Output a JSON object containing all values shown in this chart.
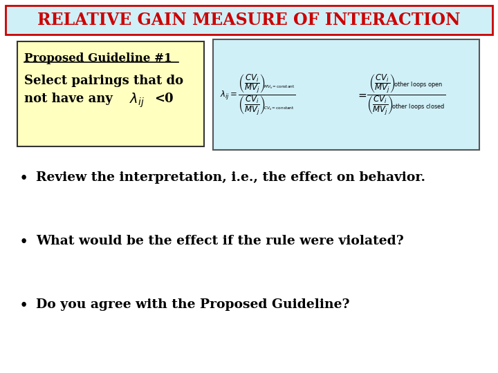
{
  "title": "RELATIVE GAIN MEASURE OF INTERACTION",
  "title_color": "#cc0000",
  "title_bg": "#d0f0f8",
  "title_border": "#cc0000",
  "bg_color": "#ffffff",
  "guideline_title": "Proposed Guideline #1",
  "guideline_text1": "Select pairings that do",
  "guideline_bg": "#ffffc0",
  "guideline_border": "#333333",
  "bullet1": "Review the interpretation, i.e., the effect on behavior.",
  "bullet2": "What would be the effect if the rule were violated?",
  "bullet3": "Do you agree with the Proposed Guideline?",
  "formula_bg": "#d0f0f8",
  "formula_border": "#555555"
}
